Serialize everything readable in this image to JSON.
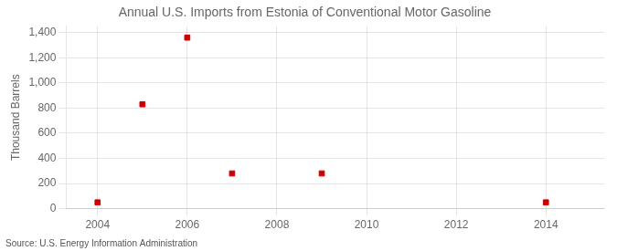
{
  "chart_data": {
    "type": "scatter",
    "title": "Annual U.S. Imports from Estonia of Conventional Motor Gasoline",
    "ylabel": "Thousand Barrels",
    "annotations": [
      "Source: U.S. Energy Information Administration"
    ],
    "x": [
      2004,
      2005,
      2006,
      2007,
      2009,
      2014
    ],
    "values": [
      50,
      830,
      1360,
      280,
      280,
      50
    ],
    "color": "#cc0000",
    "marker": "square",
    "xlim": [
      2003.3,
      2015.3
    ],
    "xticks": [
      2004,
      2006,
      2008,
      2010,
      2012,
      2014
    ],
    "ylim": [
      0,
      1450
    ],
    "yticks": [
      0,
      200,
      400,
      600,
      800,
      {
        "value": 1000,
        "label": "1,000"
      },
      {
        "value": 1200,
        "label": "1,200"
      },
      {
        "value": 1400,
        "label": "1,400"
      }
    ],
    "grid": true
  }
}
